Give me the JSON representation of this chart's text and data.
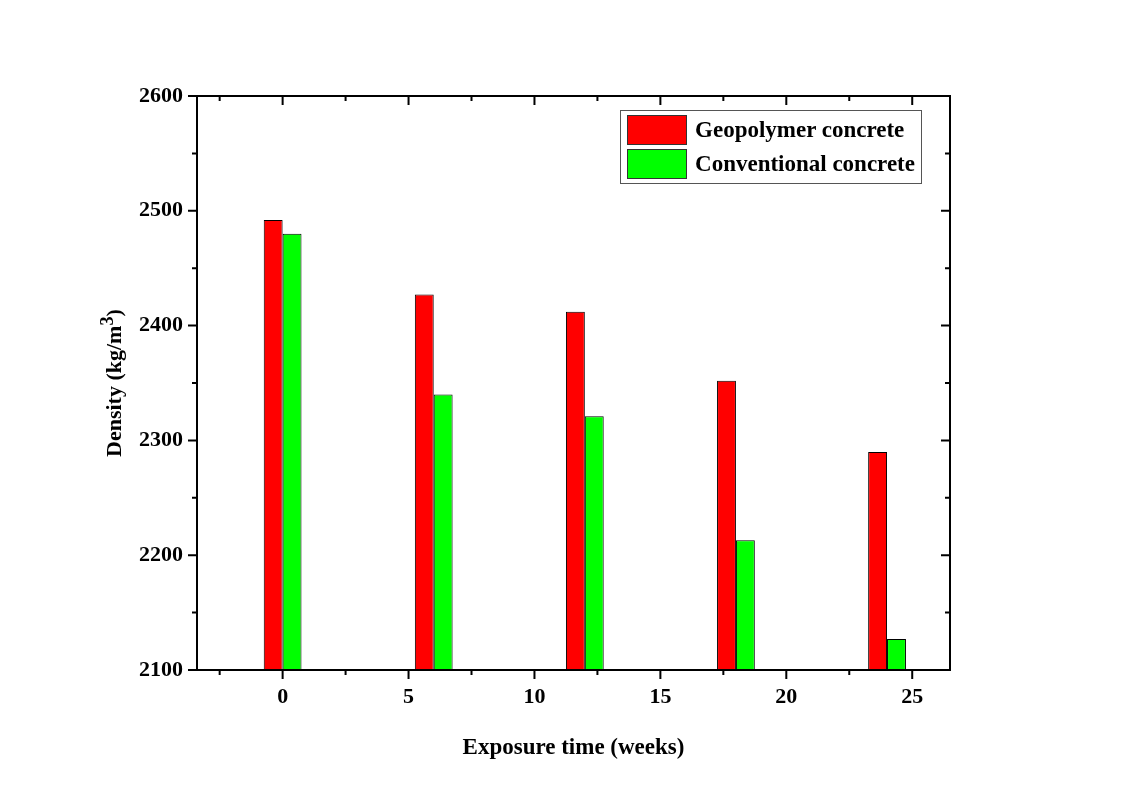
{
  "chart_data": {
    "type": "bar",
    "xlabel": "Exposure time (weeks)",
    "ylabel": "Density (kg/m$^{3}$)",
    "x": [
      0,
      6,
      12,
      18,
      24
    ],
    "series": [
      {
        "name": "Geopolymer concrete",
        "color": "#ff0000",
        "values": [
          2492,
          2427,
          2412,
          2352,
          2290
        ]
      },
      {
        "name": "Conventional concrete",
        "color": "#00ff00",
        "values": [
          2480,
          2340,
          2321,
          2213,
          2127
        ]
      }
    ],
    "xlim": [
      -3.4,
      26.5
    ],
    "xticks": [
      {
        "value": -2.5,
        "label": null
      },
      0,
      {
        "value": 2.5,
        "label": null
      },
      5,
      {
        "value": 7.5,
        "label": null
      },
      10,
      {
        "value": 12.5,
        "label": null
      },
      15,
      {
        "value": 17.5,
        "label": null
      },
      20,
      {
        "value": 22.5,
        "label": null
      },
      25
    ],
    "ylim": [
      2100,
      2600
    ],
    "yticks": [
      2100,
      {
        "value": 2150,
        "label": null
      },
      2200,
      {
        "value": 2250,
        "label": null
      },
      2300,
      {
        "value": 2350,
        "label": null
      },
      2400,
      {
        "value": 2450,
        "label": null
      },
      2500,
      {
        "value": 2550,
        "label": null
      },
      2600
    ],
    "grid": false,
    "legend": "top right"
  }
}
